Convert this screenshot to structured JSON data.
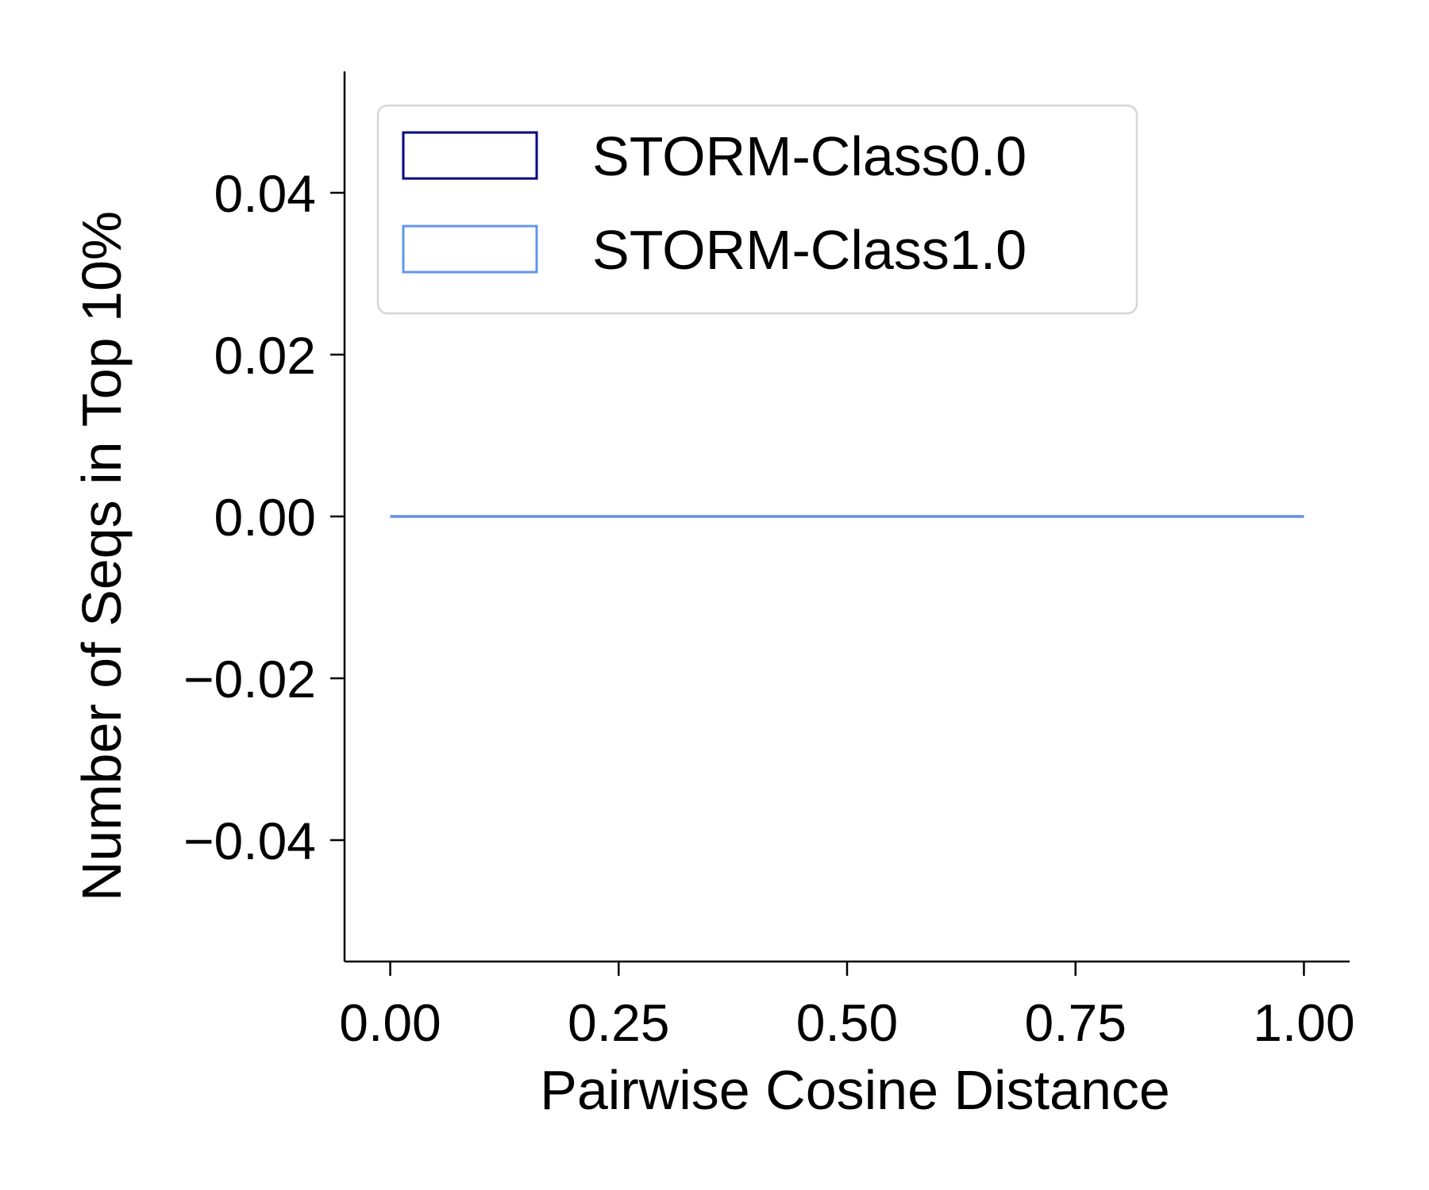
{
  "chart_data": {
    "type": "line",
    "xlabel": "Pairwise Cosine Distance",
    "ylabel": "Number of Seqs in Top 10%",
    "xlim": [
      -0.05,
      1.05
    ],
    "ylim": [
      -0.055,
      0.055
    ],
    "x_ticks": [
      0.0,
      0.25,
      0.5,
      0.75,
      1.0
    ],
    "x_tick_labels": [
      "0.00",
      "0.25",
      "0.50",
      "0.75",
      "1.00"
    ],
    "y_ticks": [
      -0.04,
      -0.02,
      0.0,
      0.02,
      0.04
    ],
    "y_tick_labels": [
      "−0.04",
      "−0.02",
      "0.00",
      "0.02",
      "0.04"
    ],
    "grid": false,
    "legend_position": "top-left",
    "series": [
      {
        "name": "STORM-Class0.0",
        "color": "#000080",
        "x": [
          0.0,
          1.0
        ],
        "y": [
          0.0,
          0.0
        ]
      },
      {
        "name": "STORM-Class1.0",
        "color": "#6495ED",
        "x": [
          0.0,
          1.0
        ],
        "y": [
          0.0,
          0.0
        ]
      }
    ]
  }
}
